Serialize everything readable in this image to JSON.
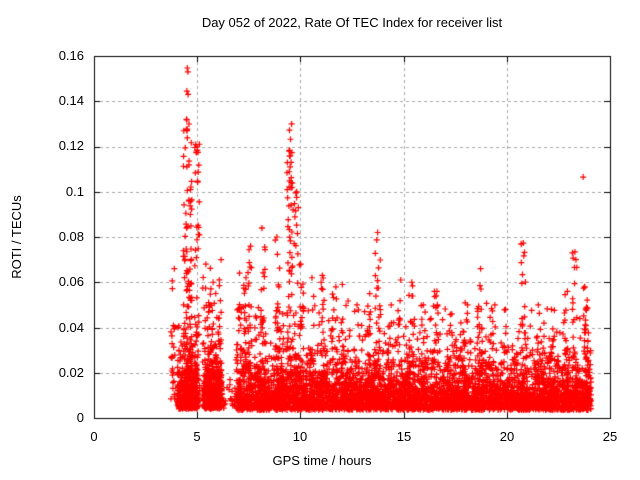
{
  "chart_data": {
    "type": "scatter",
    "title": "Day 052 of 2022, Rate Of TEC Index for receiver list",
    "xlabel": "GPS time / hours",
    "ylabel": "ROTI / TECUs",
    "xlim": [
      0,
      25
    ],
    "ylim": [
      0,
      0.16
    ],
    "xticks": [
      0,
      5,
      10,
      15,
      20,
      25
    ],
    "yticks": [
      0,
      0.02,
      0.04,
      0.06,
      0.08,
      0.1,
      0.12,
      0.14,
      0.16
    ],
    "xtick_labels": [
      "0",
      "5",
      "10",
      "15",
      "20",
      "25"
    ],
    "ytick_labels": [
      "0",
      "0.02",
      "0.04",
      "0.06",
      "0.08",
      "0.1",
      "0.12",
      "0.14",
      "0.16"
    ],
    "grid": true,
    "grid_style": "dashed",
    "legend": "none",
    "marker": {
      "shape": "plus",
      "color": "#ff0000",
      "size": 7
    },
    "colors": {
      "points": "#ff0000",
      "grid": "#a8a8a8",
      "border": "#000000",
      "background": "#ffffff",
      "text": "#000000"
    },
    "data_time_range_hours": [
      3.7,
      24.1
    ],
    "scatter_model": {
      "seed": 1234,
      "base_bands": [
        {
          "x_start": 4.05,
          "x_end": 5.05,
          "n": 420,
          "y_floor": 0.004,
          "y_tail": 0.0085
        },
        {
          "x_start": 5.3,
          "x_end": 6.2,
          "n": 430,
          "y_floor": 0.004,
          "y_tail": 0.008
        },
        {
          "x_start": 6.25,
          "x_end": 6.85,
          "n": 20,
          "y_floor": 0.004,
          "y_tail": 0.006
        },
        {
          "x_start": 6.9,
          "x_end": 24.08,
          "n": 4300,
          "y_floor": 0.0035,
          "y_tail": 0.0085
        }
      ],
      "spike_columns": [
        {
          "x": 3.82,
          "width": 0.2,
          "y_max": 0.066,
          "n": 26
        },
        {
          "x": 4.55,
          "width": 0.45,
          "y_max": 0.132,
          "n": 110
        },
        {
          "x": 5.0,
          "width": 0.25,
          "y_max": 0.121,
          "n": 45
        },
        {
          "x": 5.45,
          "width": 0.4,
          "y_max": 0.068,
          "n": 45
        },
        {
          "x": 5.8,
          "width": 0.3,
          "y_max": 0.06,
          "n": 30
        },
        {
          "x": 6.1,
          "width": 0.15,
          "y_max": 0.07,
          "n": 22
        },
        {
          "x": 7.0,
          "width": 0.25,
          "y_max": 0.064,
          "n": 35
        },
        {
          "x": 7.3,
          "width": 0.2,
          "y_max": 0.062,
          "n": 25
        },
        {
          "x": 7.55,
          "width": 0.2,
          "y_max": 0.076,
          "n": 35
        },
        {
          "x": 8.2,
          "width": 0.25,
          "y_max": 0.084,
          "n": 35
        },
        {
          "x": 8.9,
          "width": 0.25,
          "y_max": 0.08,
          "n": 35
        },
        {
          "x": 9.5,
          "width": 0.3,
          "y_max": 0.13,
          "n": 70
        },
        {
          "x": 9.8,
          "width": 0.2,
          "y_max": 0.1,
          "n": 30
        },
        {
          "x": 10.05,
          "width": 0.2,
          "y_max": 0.068,
          "n": 28
        },
        {
          "x": 10.6,
          "width": 0.25,
          "y_max": 0.062,
          "n": 22
        },
        {
          "x": 11.1,
          "width": 0.2,
          "y_max": 0.063,
          "n": 22
        },
        {
          "x": 11.65,
          "width": 0.25,
          "y_max": 0.058,
          "n": 20
        },
        {
          "x": 12.1,
          "width": 0.25,
          "y_max": 0.059,
          "n": 24
        },
        {
          "x": 12.75,
          "width": 0.3,
          "y_max": 0.05,
          "n": 18
        },
        {
          "x": 13.3,
          "width": 0.2,
          "y_max": 0.055,
          "n": 18
        },
        {
          "x": 13.75,
          "width": 0.25,
          "y_max": 0.082,
          "n": 40
        },
        {
          "x": 14.3,
          "width": 0.25,
          "y_max": 0.05,
          "n": 18
        },
        {
          "x": 14.85,
          "width": 0.25,
          "y_max": 0.061,
          "n": 24
        },
        {
          "x": 15.4,
          "width": 0.3,
          "y_max": 0.06,
          "n": 24
        },
        {
          "x": 16.0,
          "width": 0.25,
          "y_max": 0.05,
          "n": 18
        },
        {
          "x": 16.55,
          "width": 0.25,
          "y_max": 0.056,
          "n": 20
        },
        {
          "x": 17.2,
          "width": 0.3,
          "y_max": 0.046,
          "n": 16
        },
        {
          "x": 18.0,
          "width": 0.3,
          "y_max": 0.05,
          "n": 18
        },
        {
          "x": 18.7,
          "width": 0.3,
          "y_max": 0.066,
          "n": 30
        },
        {
          "x": 19.35,
          "width": 0.25,
          "y_max": 0.05,
          "n": 18
        },
        {
          "x": 20.0,
          "width": 0.25,
          "y_max": 0.048,
          "n": 16
        },
        {
          "x": 20.8,
          "width": 0.25,
          "y_max": 0.077,
          "n": 35
        },
        {
          "x": 21.5,
          "width": 0.3,
          "y_max": 0.05,
          "n": 18
        },
        {
          "x": 22.2,
          "width": 0.3,
          "y_max": 0.048,
          "n": 18
        },
        {
          "x": 22.85,
          "width": 0.25,
          "y_max": 0.056,
          "n": 22
        },
        {
          "x": 23.3,
          "width": 0.25,
          "y_max": 0.073,
          "n": 32
        },
        {
          "x": 23.85,
          "width": 0.3,
          "y_max": 0.058,
          "n": 40
        }
      ],
      "outlier_points": [
        [
          4.52,
          0.1547
        ],
        [
          4.55,
          0.153
        ],
        [
          4.5,
          0.1445
        ],
        [
          4.56,
          0.143
        ],
        [
          4.48,
          0.1275
        ],
        [
          4.52,
          0.1238
        ],
        [
          5.0,
          0.1198
        ],
        [
          4.95,
          0.1175
        ],
        [
          4.5,
          0.111
        ],
        [
          5.08,
          0.1118
        ],
        [
          5.05,
          0.1087
        ],
        [
          4.6,
          0.0963
        ],
        [
          4.68,
          0.0958
        ],
        [
          5.1,
          0.0955
        ],
        [
          4.45,
          0.0905
        ],
        [
          9.47,
          0.1272
        ],
        [
          9.52,
          0.1232
        ],
        [
          9.45,
          0.118
        ],
        [
          9.5,
          0.111
        ],
        [
          9.55,
          0.104
        ],
        [
          9.6,
          0.102
        ],
        [
          9.78,
          0.0995
        ],
        [
          9.82,
          0.0975
        ],
        [
          9.9,
          0.093
        ],
        [
          13.7,
          0.0787
        ],
        [
          20.8,
          0.0773
        ],
        [
          23.3,
          0.0734
        ],
        [
          23.35,
          0.07
        ],
        [
          23.7,
          0.1065
        ]
      ]
    }
  }
}
